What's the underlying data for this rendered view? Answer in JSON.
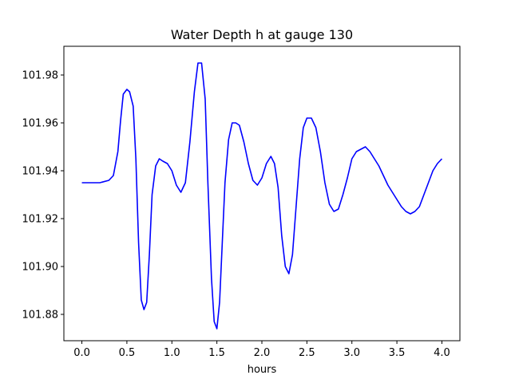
{
  "chart_data": {
    "type": "line",
    "title": "Water Depth h at gauge 130",
    "xlabel": "hours",
    "ylabel": "",
    "xlim": [
      -0.2,
      4.2
    ],
    "ylim": [
      101.869,
      101.992
    ],
    "xticks": [
      0.0,
      0.5,
      1.0,
      1.5,
      2.0,
      2.5,
      3.0,
      3.5,
      4.0
    ],
    "xtick_labels": [
      "0.0",
      "0.5",
      "1.0",
      "1.5",
      "2.0",
      "2.5",
      "3.0",
      "3.5",
      "4.0"
    ],
    "yticks": [
      101.88,
      101.9,
      101.92,
      101.94,
      101.96,
      101.98
    ],
    "ytick_labels": [
      "101.88",
      "101.90",
      "101.92",
      "101.94",
      "101.96",
      "101.98"
    ],
    "grid": false,
    "legend": "none",
    "series": [
      {
        "color": "#0000ff",
        "x": [
          0.0,
          0.1,
          0.2,
          0.3,
          0.35,
          0.4,
          0.43,
          0.46,
          0.5,
          0.53,
          0.57,
          0.6,
          0.63,
          0.66,
          0.69,
          0.72,
          0.75,
          0.78,
          0.82,
          0.86,
          0.9,
          0.95,
          1.0,
          1.05,
          1.1,
          1.15,
          1.2,
          1.25,
          1.29,
          1.33,
          1.37,
          1.4,
          1.44,
          1.47,
          1.5,
          1.53,
          1.56,
          1.59,
          1.63,
          1.67,
          1.71,
          1.75,
          1.8,
          1.85,
          1.9,
          1.95,
          2.0,
          2.05,
          2.1,
          2.14,
          2.18,
          2.22,
          2.26,
          2.3,
          2.34,
          2.38,
          2.42,
          2.46,
          2.5,
          2.55,
          2.6,
          2.65,
          2.7,
          2.75,
          2.8,
          2.85,
          2.9,
          2.95,
          3.0,
          3.05,
          3.1,
          3.15,
          3.2,
          3.25,
          3.3,
          3.35,
          3.4,
          3.45,
          3.5,
          3.55,
          3.6,
          3.65,
          3.7,
          3.75,
          3.8,
          3.85,
          3.9,
          3.95,
          4.0
        ],
        "y": [
          101.935,
          101.935,
          101.935,
          101.936,
          101.938,
          101.948,
          101.961,
          101.972,
          101.974,
          101.973,
          101.967,
          101.945,
          101.91,
          101.886,
          101.882,
          101.885,
          101.905,
          101.93,
          101.942,
          101.945,
          101.944,
          101.943,
          101.94,
          101.934,
          101.931,
          101.935,
          101.952,
          101.973,
          101.985,
          101.985,
          101.97,
          101.935,
          101.895,
          101.877,
          101.874,
          101.885,
          101.91,
          101.935,
          101.953,
          101.96,
          101.96,
          101.959,
          101.952,
          101.943,
          101.936,
          101.934,
          101.937,
          101.943,
          101.946,
          101.943,
          101.933,
          101.913,
          101.9,
          101.897,
          101.905,
          101.925,
          101.945,
          101.958,
          101.962,
          101.962,
          101.958,
          101.948,
          101.935,
          101.926,
          101.923,
          101.924,
          101.93,
          101.937,
          101.945,
          101.948,
          101.949,
          101.95,
          101.948,
          101.945,
          101.942,
          101.938,
          101.934,
          101.931,
          101.928,
          101.925,
          101.923,
          101.922,
          101.923,
          101.925,
          101.93,
          101.935,
          101.94,
          101.943,
          101.945
        ]
      }
    ]
  }
}
